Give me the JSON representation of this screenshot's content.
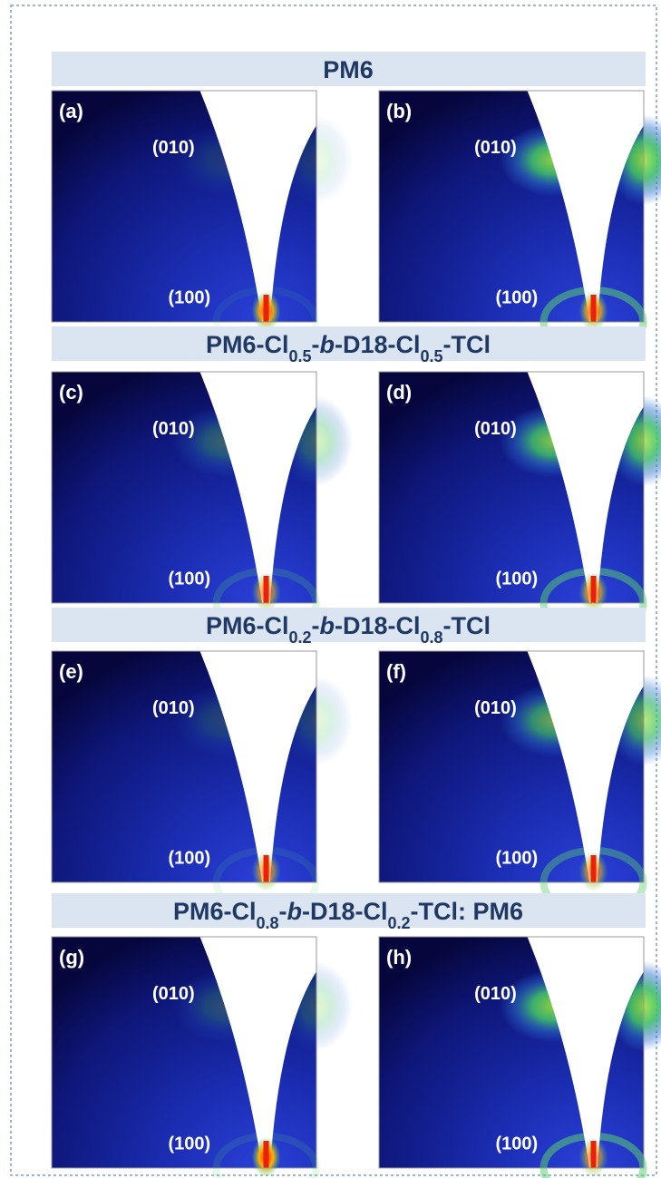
{
  "figure": {
    "sections": [
      {
        "title": [
          {
            "text": "PM6"
          }
        ],
        "panels": [
          {
            "label": "(a)",
            "peak_010": "(010)",
            "peak_100": "(100)"
          },
          {
            "label": "(b)",
            "peak_010": "(010)",
            "peak_100": "(100)"
          }
        ]
      },
      {
        "title": [
          {
            "text": "PM6-Cl"
          },
          {
            "text": "0.5",
            "style": "sub"
          },
          {
            "text": "-"
          },
          {
            "text": "b",
            "style": "italic"
          },
          {
            "text": "-D18-Cl"
          },
          {
            "text": "0.5",
            "style": "sub"
          },
          {
            "text": "-TCl"
          }
        ],
        "panels": [
          {
            "label": "(c)",
            "peak_010": "(010)",
            "peak_100": "(100)"
          },
          {
            "label": "(d)",
            "peak_010": "(010)",
            "peak_100": "(100)"
          }
        ]
      },
      {
        "title": [
          {
            "text": "PM6-Cl"
          },
          {
            "text": "0.2",
            "style": "sub"
          },
          {
            "text": "-"
          },
          {
            "text": "b",
            "style": "italic"
          },
          {
            "text": "-D18-Cl"
          },
          {
            "text": "0.8",
            "style": "sub"
          },
          {
            "text": "-TCl"
          }
        ],
        "panels": [
          {
            "label": "(e)",
            "peak_010": "(010)",
            "peak_100": "(100)"
          },
          {
            "label": "(f)",
            "peak_010": "(010)",
            "peak_100": "(100)"
          }
        ]
      },
      {
        "title": [
          {
            "text": "PM6-Cl"
          },
          {
            "text": "0.8",
            "style": "sub"
          },
          {
            "text": "-"
          },
          {
            "text": "b",
            "style": "italic"
          },
          {
            "text": "-D18-Cl"
          },
          {
            "text": "0.2",
            "style": "sub"
          },
          {
            "text": "-TCl: PM6"
          }
        ],
        "panels": [
          {
            "label": "(g)",
            "peak_010": "(010)",
            "peak_100": "(100)"
          },
          {
            "label": "(h)",
            "peak_010": "(010)",
            "peak_100": "(100)"
          }
        ]
      }
    ]
  }
}
